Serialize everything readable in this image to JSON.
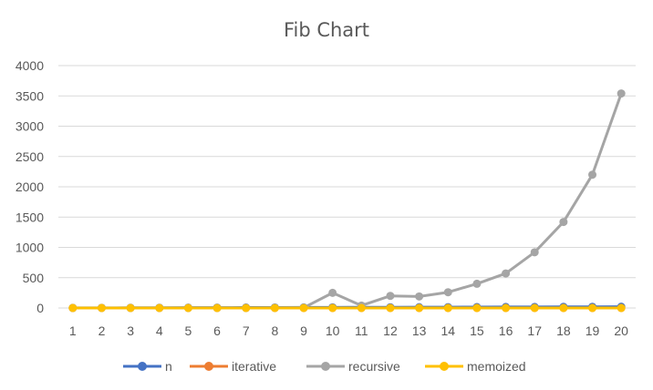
{
  "chart_data": {
    "type": "line",
    "title": "Fib Chart",
    "xlabel": "",
    "ylabel": "",
    "x": [
      1,
      2,
      3,
      4,
      5,
      6,
      7,
      8,
      9,
      10,
      11,
      12,
      13,
      14,
      15,
      16,
      17,
      18,
      19,
      20
    ],
    "ylim": [
      0,
      4000
    ],
    "yticks": [
      0,
      500,
      1000,
      1500,
      2000,
      2500,
      3000,
      3500,
      4000
    ],
    "grid": true,
    "legend": "bottom",
    "series": [
      {
        "name": "n",
        "color": "#4472c4",
        "values": [
          1,
          2,
          3,
          4,
          5,
          6,
          7,
          8,
          9,
          10,
          11,
          12,
          13,
          14,
          15,
          16,
          17,
          18,
          19,
          20
        ]
      },
      {
        "name": "iterative",
        "color": "#ed7d31",
        "values": [
          0,
          0,
          0,
          0,
          0,
          0,
          0,
          0,
          0,
          0,
          0,
          0,
          0,
          0,
          0,
          0,
          0,
          0,
          0,
          0
        ]
      },
      {
        "name": "recursive",
        "color": "#a5a5a5",
        "values": [
          0,
          0,
          0,
          0,
          0,
          0,
          0,
          2,
          5,
          250,
          40,
          200,
          190,
          260,
          400,
          570,
          920,
          1420,
          2200,
          3540
        ]
      },
      {
        "name": "memoized",
        "color": "#ffc000",
        "values": [
          0,
          0,
          0,
          0,
          0,
          0,
          0,
          0,
          0,
          0,
          0,
          0,
          0,
          0,
          0,
          0,
          0,
          0,
          0,
          0
        ]
      }
    ]
  }
}
